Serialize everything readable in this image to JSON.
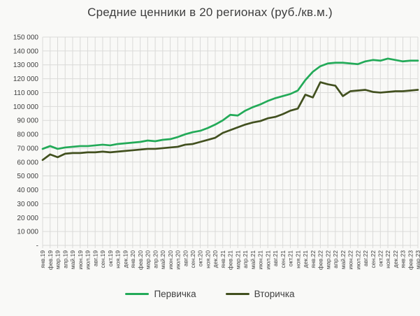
{
  "title": "Средние ценники в 20 регионах (руб./кв.м.)",
  "axis": {
    "y_labels": [
      "150 000",
      "140 000",
      "130 000",
      "120 000",
      "110 000",
      "100 000",
      "90 000",
      "80 000",
      "70 000",
      "60 000",
      "50 000",
      "40 000",
      "30 000",
      "20 000",
      "10 000",
      "-"
    ]
  },
  "colors": {
    "background": "#f9f9f7",
    "grid": "#dadad8",
    "tick_text": "#404040",
    "title_text": "#3d3d3d",
    "primary": "#23aa58",
    "secondary": "#42501f"
  },
  "chart_data": {
    "type": "line",
    "title": "Средние ценники в 20 регионах (руб./кв.м.)",
    "xlabel": "",
    "ylabel": "",
    "ylim": [
      0,
      150000
    ],
    "y_tick_step": 10000,
    "grid": true,
    "legend_position": "bottom",
    "categories": [
      "янв.19",
      "фев.19",
      "мар.19",
      "апр.19",
      "май.19",
      "июн.19",
      "июл.19",
      "авг.19",
      "сен.19",
      "окт.19",
      "ноя.19",
      "дек.19",
      "янв.20",
      "фев.20",
      "мар.20",
      "апр.20",
      "май.20",
      "июн.20",
      "июл.20",
      "авг.20",
      "сен.20",
      "окт.20",
      "ноя.20",
      "дек.20",
      "янв.21",
      "фев.21",
      "мар.21",
      "апр.21",
      "май.21",
      "июн.21",
      "июл.21",
      "авг.21",
      "сен.21",
      "окт.21",
      "ноя.21",
      "дек.21",
      "янв.22",
      "фев.22",
      "мар.22",
      "апр.22",
      "май.22",
      "июн.22",
      "июл.22",
      "авг.22",
      "сен.22",
      "окт.22",
      "ноя.22",
      "дек.22",
      "янв.23",
      "фев.23",
      "мар.23"
    ],
    "series": [
      {
        "name": "Первичка",
        "color": "#23aa58",
        "values": [
          69500,
          71500,
          69500,
          70500,
          71000,
          71500,
          71500,
          72000,
          72500,
          72000,
          73000,
          73500,
          74000,
          74500,
          75500,
          75000,
          76000,
          76500,
          78000,
          80000,
          81500,
          82500,
          84500,
          87000,
          90000,
          94000,
          93500,
          97000,
          99500,
          101500,
          104000,
          106000,
          107500,
          109000,
          111500,
          119000,
          125000,
          129000,
          131000,
          131500,
          131500,
          131000,
          130500,
          132500,
          133500,
          133000,
          134500,
          133500,
          132500,
          133000,
          133000
        ]
      },
      {
        "name": "Вторичка",
        "color": "#42501f",
        "values": [
          61500,
          65500,
          63500,
          66000,
          66500,
          66500,
          67000,
          67000,
          67500,
          67000,
          67500,
          68000,
          68500,
          69000,
          69500,
          69500,
          70000,
          70500,
          71000,
          72500,
          73000,
          74500,
          76000,
          77500,
          81000,
          83000,
          85000,
          87000,
          88500,
          89500,
          91500,
          92500,
          94500,
          97000,
          98500,
          108500,
          106500,
          117500,
          116000,
          115000,
          107500,
          111000,
          111500,
          112000,
          110500,
          110000,
          110500,
          111000,
          111000,
          111500,
          112000
        ]
      }
    ]
  }
}
